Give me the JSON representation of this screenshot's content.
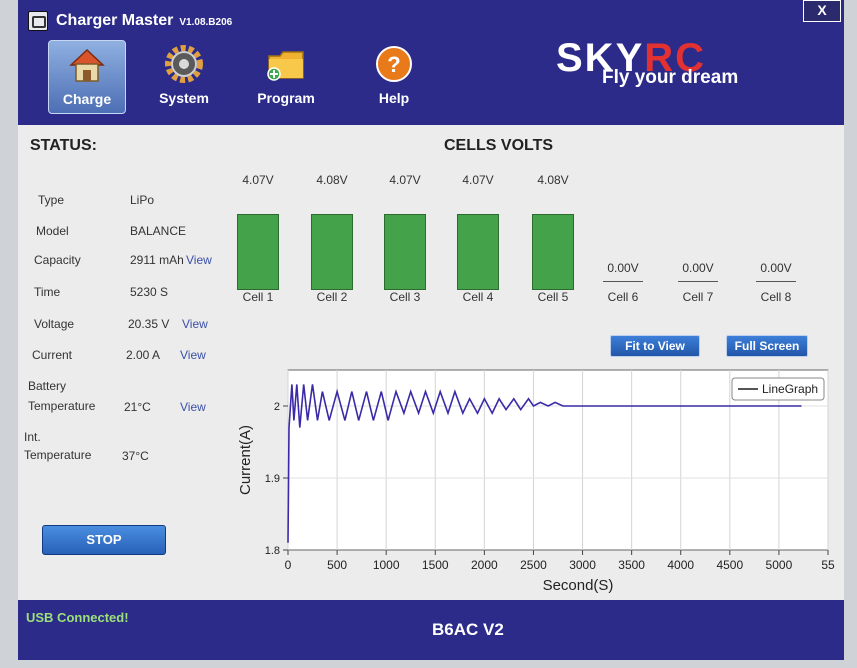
{
  "title_bar": {
    "title": "Charger Master",
    "version": "V1.08.B206",
    "close_label": "X"
  },
  "nav": [
    {
      "label": "Charge",
      "icon": "house-icon"
    },
    {
      "label": "System",
      "icon": "gear-icon"
    },
    {
      "label": "Program",
      "icon": "folder-icon"
    },
    {
      "label": "Help",
      "icon": "help-icon"
    }
  ],
  "brand": {
    "name_sky": "SKY",
    "name_rc": "RC",
    "slogan": "Fly your dream",
    "rc_color": "#e23131"
  },
  "status": {
    "title": "STATUS:",
    "type_label": "Type",
    "type_value": "LiPo",
    "mode_label": "Model",
    "mode_value": "BALANCE",
    "capacity_label": "Capacity",
    "capacity_value": "2911 mAh",
    "capacity_link": "View",
    "time_label": "Time",
    "time_value": "5230 S",
    "voltage_label": "Voltage",
    "voltage_value": "20.35 V",
    "voltage_link": "View",
    "current_label": "Current",
    "current_value": "2.00 A",
    "current_link": "View",
    "battery_label_1": "Battery",
    "battery_label_2": "Temperature",
    "battery_value": "21°C",
    "battery_link": "View",
    "int_label_1": "Int.",
    "int_label_2": "Temperature",
    "int_value": "37°C",
    "stop_label": "STOP"
  },
  "cells": {
    "title": "CELLS VOLTS",
    "items": [
      {
        "name": "Cell 1",
        "volts": "4.07V",
        "level": 0.84
      },
      {
        "name": "Cell 2",
        "volts": "4.08V",
        "level": 0.84
      },
      {
        "name": "Cell 3",
        "volts": "4.07V",
        "level": 0.84
      },
      {
        "name": "Cell 4",
        "volts": "4.07V",
        "level": 0.84
      },
      {
        "name": "Cell 5",
        "volts": "4.08V",
        "level": 0.84
      },
      {
        "name": "Cell 6",
        "volts": "0.00V",
        "level": 0
      },
      {
        "name": "Cell 7",
        "volts": "0.00V",
        "level": 0
      },
      {
        "name": "Cell 8",
        "volts": "0.00V",
        "level": 0
      }
    ],
    "bar_color": "#44a34a"
  },
  "buttons": {
    "fit_to_view": "Fit to View",
    "full_screen": "Full Screen"
  },
  "chart_data": {
    "type": "line",
    "xlabel": "Second(S)",
    "ylabel": "Current(A)",
    "xlim": [
      0,
      5500
    ],
    "ylim": [
      1.8,
      2.05
    ],
    "xticks": [
      "0",
      "500",
      "1000",
      "1500",
      "2000",
      "2500",
      "3000",
      "3500",
      "4000",
      "4500",
      "5000",
      "55"
    ],
    "yticks": [
      "1.8",
      "1.9",
      "2"
    ],
    "legend": "LineGraph",
    "legend_position": "top-right",
    "grid": true,
    "line_color": "#3a2aa8",
    "series": [
      {
        "name": "LineGraph",
        "x": [
          0,
          10,
          40,
          60,
          90,
          120,
          160,
          200,
          250,
          300,
          350,
          420,
          500,
          580,
          650,
          720,
          800,
          870,
          950,
          1020,
          1100,
          1180,
          1250,
          1330,
          1400,
          1480,
          1550,
          1630,
          1700,
          1780,
          1850,
          1930,
          2000,
          2080,
          2150,
          2220,
          2300,
          2370,
          2450,
          2500,
          2570,
          2650,
          2720,
          2800,
          2900,
          3000,
          3100,
          3200,
          3300,
          3400,
          3500,
          3600,
          3700,
          3800,
          3900,
          4000,
          4100,
          4200,
          4300,
          4400,
          4500,
          4600,
          4700,
          4800,
          4900,
          5000,
          5100,
          5230
        ],
        "y": [
          1.81,
          1.97,
          2.03,
          1.98,
          2.03,
          1.97,
          2.03,
          1.98,
          2.03,
          1.98,
          2.02,
          1.98,
          2.02,
          1.98,
          2.02,
          1.98,
          2.02,
          1.98,
          2.02,
          1.98,
          2.02,
          1.99,
          2.02,
          1.99,
          2.02,
          1.99,
          2.02,
          1.99,
          2.02,
          1.99,
          2.01,
          1.99,
          2.01,
          1.99,
          2.01,
          1.995,
          2.01,
          1.995,
          2.01,
          2.0,
          2.005,
          2.0,
          2.005,
          2.0,
          2.0,
          2.0,
          2.0,
          2.0,
          2.0,
          2.0,
          2.0,
          2.0,
          2.0,
          2.0,
          2.0,
          2.0,
          2.0,
          2.0,
          2.0,
          2.0,
          2.0,
          2.0,
          2.0,
          2.0,
          2.0,
          2.0,
          2.0,
          2.0
        ]
      }
    ]
  },
  "footer": {
    "usb_status": "USB Connected!",
    "model": "B6AC V2"
  }
}
